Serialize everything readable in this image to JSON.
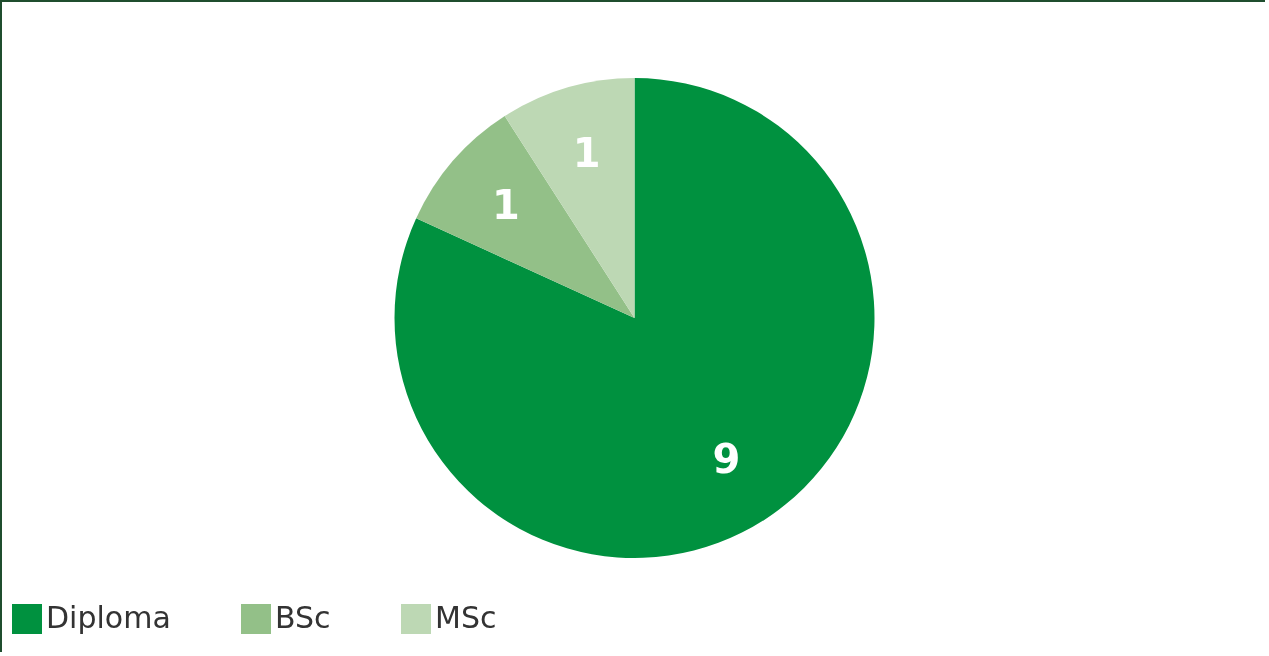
{
  "chart_data": {
    "type": "pie",
    "categories": [
      "Diploma",
      "BSc",
      "MSc"
    ],
    "values": [
      9,
      1,
      1
    ],
    "colors": [
      "#00913f",
      "#93c088",
      "#bdd8b4"
    ],
    "data_labels": true,
    "legend": "bottom"
  }
}
